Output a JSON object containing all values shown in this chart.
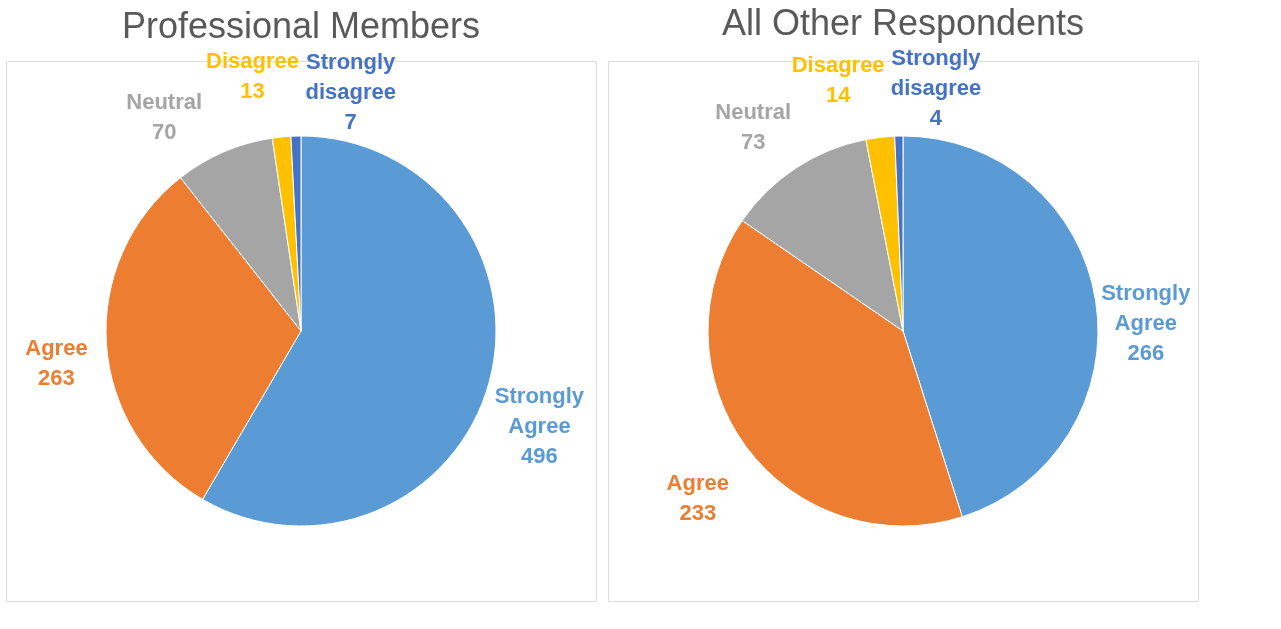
{
  "chart_data": [
    {
      "type": "pie",
      "title": "Professional Members",
      "categories": [
        "Strongly Agree",
        "Agree",
        "Neutral",
        "Disagree",
        "Strongly disagree"
      ],
      "values": [
        496,
        263,
        70,
        13,
        7
      ],
      "colors": [
        "#5b9bd5",
        "#ed7d31",
        "#a5a5a5",
        "#ffc000",
        "#4472c4"
      ],
      "data_labels": true
    },
    {
      "type": "pie",
      "title": "All Other Respondents",
      "categories": [
        "Strongly Agree",
        "Agree",
        "Neutral",
        "Disagree",
        "Strongly disagree"
      ],
      "values": [
        266,
        233,
        73,
        14,
        4
      ],
      "colors": [
        "#5b9bd5",
        "#ed7d31",
        "#a5a5a5",
        "#ffc000",
        "#4472c4"
      ],
      "data_labels": true
    }
  ]
}
